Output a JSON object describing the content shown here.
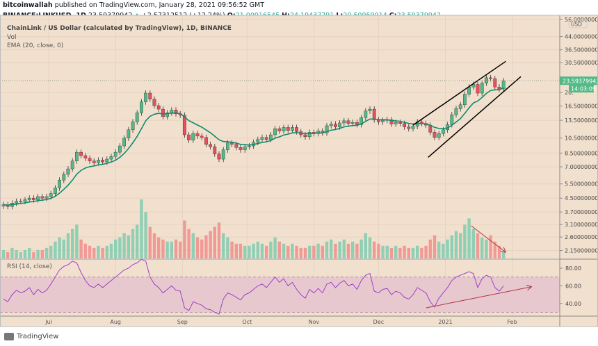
{
  "header": {
    "author": "bitcoinwallah",
    "published": " published on TradingView.com, January 28, 2021 09:56:52 GMT",
    "symbol": "BINANCE:LINKUSD, 1D",
    "last": "23.59379942",
    "change": "+2.57312512 (+12.24%)",
    "o_label": "O:",
    "o": "21.00916545",
    "h_label": "H:",
    "h": "24.19437791",
    "l_label": "L:",
    "l": "20.50959914",
    "c_label": "C:",
    "c": "23.59379942"
  },
  "legend": {
    "title": "ChainLink / US Dollar (calculated by TradingView), 1D, BINANCE",
    "vol": "Vol",
    "ema": "EMA (20, close, 0)",
    "rsi": "RSI (14, close)"
  },
  "footer": {
    "logo": "TradingView"
  },
  "colors": {
    "background": "#f2e0ce",
    "up": "#53b987",
    "down": "#eb4d5c",
    "ema": "#0f8a6f",
    "rsi": "#9b3fc8",
    "rsi_band": "#e8c8cf",
    "drawing": "#000000",
    "arrow": "#b03040",
    "price_label": "#53b987"
  },
  "chart_data": {
    "type": "candlestick",
    "scale": "log",
    "currency": "USD",
    "price_ticks": [
      "56.00000000",
      "44.00000000",
      "36.50000000",
      "30.50000000",
      "20.",
      "16.50000000",
      "13.50000000",
      "10.50000000",
      "8.50000000",
      "7.00000000",
      "5.50000000",
      "4.50000000",
      "3.70000000",
      "3.10000000",
      "2.60000000",
      "2.15000000"
    ],
    "price_tick_values": [
      56,
      44,
      36.5,
      30.5,
      20,
      16.5,
      13.5,
      10.5,
      8.5,
      7,
      5.5,
      4.5,
      3.7,
      3.1,
      2.6,
      2.15
    ],
    "rsi_ticks": [
      "80.00",
      "60.00",
      "40.00"
    ],
    "rsi_tick_values": [
      80,
      60,
      40
    ],
    "rsi_band": [
      30,
      70
    ],
    "x_ticks": [
      {
        "label": "Jul",
        "date": "2020-07-01"
      },
      {
        "label": "Aug",
        "date": "2020-08-01"
      },
      {
        "label": "Sep",
        "date": "2020-09-01"
      },
      {
        "label": "Oct",
        "date": "2020-10-01"
      },
      {
        "label": "Nov",
        "date": "2020-11-01"
      },
      {
        "label": "Dec",
        "date": "2020-12-01"
      },
      {
        "label": "2021",
        "date": "2021-01-01"
      },
      {
        "label": "Feb",
        "date": "2021-02-01"
      }
    ],
    "start_date": "2020-06-10",
    "interval_days": 2,
    "current_price": "23.59379942",
    "countdown": "14:03:09",
    "close": [
      4.1,
      4.0,
      4.2,
      4.3,
      4.3,
      4.4,
      4.5,
      4.4,
      4.6,
      4.5,
      4.6,
      4.8,
      5.2,
      5.8,
      6.3,
      6.8,
      7.6,
      8.6,
      8.2,
      7.9,
      7.6,
      7.4,
      7.7,
      7.5,
      7.8,
      8.1,
      8.6,
      9.4,
      10.5,
      11.8,
      13.2,
      15.0,
      17.5,
      19.8,
      18.2,
      16.6,
      15.8,
      14.2,
      15.0,
      15.6,
      14.8,
      14.5,
      11.0,
      10.2,
      11.2,
      10.8,
      10.6,
      9.6,
      9.3,
      8.4,
      7.8,
      8.9,
      9.8,
      9.6,
      9.2,
      8.9,
      9.3,
      9.4,
      9.9,
      10.3,
      10.6,
      10.3,
      11.0,
      12.0,
      11.6,
      12.2,
      11.7,
      12.2,
      11.5,
      11.0,
      10.7,
      11.4,
      11.2,
      11.6,
      11.3,
      12.5,
      12.8,
      12.3,
      13.0,
      13.4,
      12.9,
      13.1,
      12.7,
      14.0,
      15.4,
      15.8,
      13.6,
      13.2,
      13.5,
      13.6,
      12.8,
      13.1,
      12.9,
      12.3,
      12.0,
      12.4,
      13.2,
      12.9,
      12.6,
      11.4,
      10.6,
      11.2,
      11.8,
      12.7,
      14.6,
      15.9,
      16.8,
      19.5,
      21.6,
      22.4,
      19.8,
      22.8,
      24.6,
      24.3,
      21.6,
      21.0,
      23.59
    ],
    "volume": [
      4,
      3,
      5,
      4,
      3,
      4,
      5,
      3,
      4,
      4,
      5,
      6,
      8,
      10,
      9,
      12,
      14,
      16,
      9,
      7,
      6,
      5,
      6,
      5,
      6,
      7,
      9,
      10,
      12,
      11,
      14,
      16,
      28,
      22,
      15,
      12,
      10,
      9,
      8,
      8,
      9,
      8,
      18,
      14,
      12,
      10,
      9,
      11,
      13,
      15,
      17,
      12,
      10,
      8,
      7,
      7,
      6,
      6,
      7,
      8,
      7,
      6,
      8,
      10,
      8,
      7,
      6,
      7,
      6,
      5,
      5,
      6,
      6,
      7,
      6,
      8,
      9,
      7,
      8,
      9,
      7,
      8,
      7,
      9,
      12,
      10,
      8,
      7,
      6,
      6,
      5,
      6,
      5,
      6,
      5,
      5,
      6,
      5,
      6,
      9,
      11,
      8,
      7,
      9,
      11,
      13,
      12,
      16,
      19,
      14,
      12,
      10,
      9,
      11,
      8,
      6,
      3
    ],
    "rsi": [
      45,
      42,
      50,
      55,
      52,
      54,
      58,
      50,
      56,
      52,
      55,
      62,
      70,
      78,
      82,
      84,
      88,
      86,
      75,
      66,
      60,
      58,
      62,
      58,
      62,
      66,
      70,
      74,
      78,
      80,
      84,
      86,
      90,
      88,
      70,
      62,
      58,
      52,
      56,
      60,
      55,
      54,
      35,
      32,
      42,
      40,
      38,
      34,
      33,
      30,
      28,
      45,
      52,
      50,
      47,
      44,
      50,
      52,
      56,
      60,
      62,
      58,
      64,
      70,
      64,
      68,
      60,
      64,
      56,
      50,
      46,
      56,
      52,
      57,
      52,
      62,
      64,
      58,
      63,
      66,
      60,
      62,
      56,
      66,
      72,
      74,
      54,
      52,
      56,
      57,
      50,
      54,
      52,
      47,
      45,
      50,
      58,
      55,
      52,
      42,
      36,
      46,
      52,
      58,
      66,
      70,
      72,
      74,
      76,
      74,
      58,
      68,
      72,
      70,
      58,
      54,
      60
    ],
    "ema_period": 20,
    "drawings": [
      {
        "type": "trendline",
        "name": "channel-upper",
        "points": [
          [
            "2020-12-17",
            12.6
          ],
          [
            "2021-01-29",
            31.0
          ]
        ]
      },
      {
        "type": "trendline",
        "name": "channel-lower",
        "points": [
          [
            "2020-12-24",
            8.0
          ],
          [
            "2021-02-05",
            25.0
          ]
        ]
      },
      {
        "type": "arrow",
        "pane": "volume",
        "name": "volume-down-arrow",
        "from": "2021-01-13",
        "to": "2021-01-29"
      },
      {
        "type": "arrow",
        "pane": "rsi",
        "name": "rsi-up-arrow",
        "points": [
          [
            "2020-12-23",
            35
          ],
          [
            "2021-02-10",
            59
          ]
        ]
      }
    ]
  }
}
